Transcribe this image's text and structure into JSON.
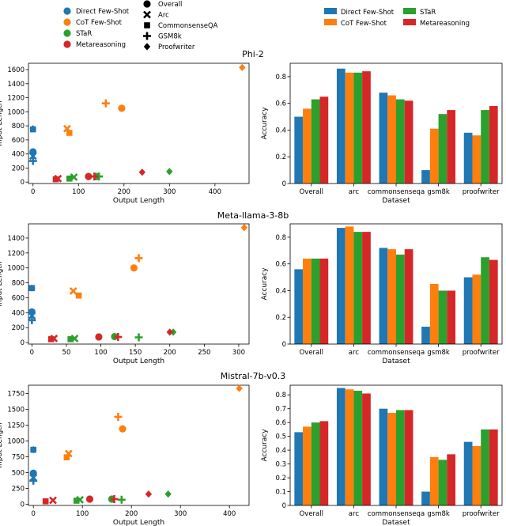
{
  "method_legend": {
    "entries": [
      {
        "label": "Direct Few-Shot",
        "color": "#1f77b4"
      },
      {
        "label": "CoT Few-Shot",
        "color": "#ff7f0e"
      },
      {
        "label": "STaR",
        "color": "#2ca02c"
      },
      {
        "label": "Metareasoning",
        "color": "#d62728"
      }
    ]
  },
  "dataset_legend": {
    "entries": [
      {
        "label": "Overall",
        "marker": "circle"
      },
      {
        "label": "Arc",
        "marker": "x"
      },
      {
        "label": "CommonsenseQA",
        "marker": "square"
      },
      {
        "label": "GSM8k",
        "marker": "plus"
      },
      {
        "label": "Proofwriter",
        "marker": "diamond"
      }
    ]
  },
  "bar_legend": {
    "entries": [
      {
        "label": "Direct Few-Shot",
        "color": "#1f77b4"
      },
      {
        "label": "CoT Few-Shot",
        "color": "#ff7f0e"
      },
      {
        "label": "STaR",
        "color": "#2ca02c"
      },
      {
        "label": "Metareasoning",
        "color": "#d62728"
      }
    ]
  },
  "chart_data": [
    {
      "type": "scatter",
      "title": "Phi-2",
      "xlabel": "Output Length",
      "ylabel": "Input Length",
      "xlim": [
        -10,
        475
      ],
      "ylim": [
        -20,
        1690
      ],
      "xticks": [
        0,
        100,
        200,
        300,
        400
      ],
      "yticks": [
        0,
        200,
        400,
        600,
        800,
        1000,
        1200,
        1400,
        1600
      ],
      "points": [
        {
          "method": "Direct Few-Shot",
          "dataset": "Overall",
          "x": 0,
          "y": 430
        },
        {
          "method": "Direct Few-Shot",
          "dataset": "Arc",
          "x": 0,
          "y": 370
        },
        {
          "method": "Direct Few-Shot",
          "dataset": "CommonsenseQA",
          "x": 0,
          "y": 750
        },
        {
          "method": "Direct Few-Shot",
          "dataset": "GSM8k",
          "x": 0,
          "y": 300
        },
        {
          "method": "Direct Few-Shot",
          "dataset": "Proofwriter",
          "x": 0,
          "y": 760
        },
        {
          "method": "CoT Few-Shot",
          "dataset": "Overall",
          "x": 195,
          "y": 1050
        },
        {
          "method": "CoT Few-Shot",
          "dataset": "Arc",
          "x": 75,
          "y": 760
        },
        {
          "method": "CoT Few-Shot",
          "dataset": "CommonsenseQA",
          "x": 80,
          "y": 700
        },
        {
          "method": "CoT Few-Shot",
          "dataset": "GSM8k",
          "x": 160,
          "y": 1120
        },
        {
          "method": "CoT Few-Shot",
          "dataset": "Proofwriter",
          "x": 460,
          "y": 1630
        },
        {
          "method": "STaR",
          "dataset": "Overall",
          "x": 140,
          "y": 80
        },
        {
          "method": "STaR",
          "dataset": "Arc",
          "x": 90,
          "y": 70
        },
        {
          "method": "STaR",
          "dataset": "CommonsenseQA",
          "x": 80,
          "y": 50
        },
        {
          "method": "STaR",
          "dataset": "GSM8k",
          "x": 145,
          "y": 80
        },
        {
          "method": "STaR",
          "dataset": "Proofwriter",
          "x": 300,
          "y": 150
        },
        {
          "method": "Metareasoning",
          "dataset": "Overall",
          "x": 122,
          "y": 80
        },
        {
          "method": "Metareasoning",
          "dataset": "Arc",
          "x": 55,
          "y": 50
        },
        {
          "method": "Metareasoning",
          "dataset": "CommonsenseQA",
          "x": 50,
          "y": 40
        },
        {
          "method": "Metareasoning",
          "dataset": "GSM8k",
          "x": 135,
          "y": 80
        },
        {
          "method": "Metareasoning",
          "dataset": "Proofwriter",
          "x": 240,
          "y": 140
        }
      ]
    },
    {
      "type": "bar",
      "title": "",
      "xlabel": "Dataset",
      "ylabel": "Accuracy",
      "ylim": [
        0,
        0.9
      ],
      "yticks": [
        0.0,
        0.2,
        0.4,
        0.6,
        0.8
      ],
      "categories": [
        "Overall",
        "arc",
        "commonsenseqa",
        "gsm8k",
        "proofwriter"
      ],
      "series": [
        {
          "name": "Direct Few-Shot",
          "values": [
            0.5,
            0.86,
            0.68,
            0.1,
            0.38
          ]
        },
        {
          "name": "CoT Few-Shot",
          "values": [
            0.56,
            0.83,
            0.66,
            0.41,
            0.36
          ]
        },
        {
          "name": "STaR",
          "values": [
            0.63,
            0.83,
            0.63,
            0.52,
            0.55
          ]
        },
        {
          "name": "Metareasoning",
          "values": [
            0.65,
            0.84,
            0.62,
            0.55,
            0.58
          ]
        }
      ]
    },
    {
      "type": "scatter",
      "title": "Meta-llama-3-8b",
      "xlabel": "Output Length",
      "ylabel": "Input Length",
      "xlim": [
        -5,
        315
      ],
      "ylim": [
        -20,
        1590
      ],
      "xticks": [
        0,
        50,
        100,
        150,
        200,
        250,
        300
      ],
      "yticks": [
        0,
        200,
        400,
        600,
        800,
        1000,
        1200,
        1400
      ],
      "points": [
        {
          "method": "Direct Few-Shot",
          "dataset": "Overall",
          "x": 0,
          "y": 410
        },
        {
          "method": "Direct Few-Shot",
          "dataset": "Arc",
          "x": 0,
          "y": 360
        },
        {
          "method": "Direct Few-Shot",
          "dataset": "CommonsenseQA",
          "x": 0,
          "y": 730
        },
        {
          "method": "Direct Few-Shot",
          "dataset": "GSM8k",
          "x": 0,
          "y": 300
        },
        {
          "method": "Direct Few-Shot",
          "dataset": "Proofwriter",
          "x": 0,
          "y": 730
        },
        {
          "method": "CoT Few-Shot",
          "dataset": "Overall",
          "x": 148,
          "y": 1000
        },
        {
          "method": "CoT Few-Shot",
          "dataset": "Arc",
          "x": 60,
          "y": 690
        },
        {
          "method": "CoT Few-Shot",
          "dataset": "CommonsenseQA",
          "x": 68,
          "y": 630
        },
        {
          "method": "CoT Few-Shot",
          "dataset": "GSM8k",
          "x": 155,
          "y": 1130
        },
        {
          "method": "CoT Few-Shot",
          "dataset": "Proofwriter",
          "x": 308,
          "y": 1540
        },
        {
          "method": "STaR",
          "dataset": "Overall",
          "x": 120,
          "y": 80
        },
        {
          "method": "STaR",
          "dataset": "Arc",
          "x": 62,
          "y": 55
        },
        {
          "method": "STaR",
          "dataset": "CommonsenseQA",
          "x": 56,
          "y": 45
        },
        {
          "method": "STaR",
          "dataset": "GSM8k",
          "x": 155,
          "y": 70
        },
        {
          "method": "STaR",
          "dataset": "Proofwriter",
          "x": 205,
          "y": 140
        },
        {
          "method": "Metareasoning",
          "dataset": "Overall",
          "x": 97,
          "y": 75
        },
        {
          "method": "Metareasoning",
          "dataset": "Arc",
          "x": 32,
          "y": 55
        },
        {
          "method": "Metareasoning",
          "dataset": "CommonsenseQA",
          "x": 28,
          "y": 45
        },
        {
          "method": "Metareasoning",
          "dataset": "GSM8k",
          "x": 125,
          "y": 75
        },
        {
          "method": "Metareasoning",
          "dataset": "Proofwriter",
          "x": 200,
          "y": 140
        }
      ]
    },
    {
      "type": "bar",
      "title": "",
      "xlabel": "Dataset",
      "ylabel": "Accuracy",
      "ylim": [
        0,
        0.9
      ],
      "yticks": [
        0.0,
        0.2,
        0.4,
        0.6,
        0.8
      ],
      "categories": [
        "Overall",
        "arc",
        "commonsenseqa",
        "gsm8k",
        "proofwriter"
      ],
      "series": [
        {
          "name": "Direct Few-Shot",
          "values": [
            0.56,
            0.87,
            0.72,
            0.13,
            0.5
          ]
        },
        {
          "name": "CoT Few-Shot",
          "values": [
            0.64,
            0.88,
            0.71,
            0.45,
            0.52
          ]
        },
        {
          "name": "STaR",
          "values": [
            0.64,
            0.84,
            0.67,
            0.4,
            0.65
          ]
        },
        {
          "name": "Metareasoning",
          "values": [
            0.64,
            0.84,
            0.71,
            0.4,
            0.63
          ]
        }
      ]
    },
    {
      "type": "scatter",
      "title": "Mistral-7b-v0.3",
      "xlabel": "Output Length",
      "ylabel": "Input Length",
      "xlim": [
        -10,
        440
      ],
      "ylim": [
        -20,
        1880
      ],
      "xticks": [
        0,
        100,
        200,
        300,
        400
      ],
      "yticks": [
        0,
        250,
        500,
        750,
        1000,
        1250,
        1500,
        1750
      ],
      "points": [
        {
          "method": "Direct Few-Shot",
          "dataset": "Overall",
          "x": 0,
          "y": 490
        },
        {
          "method": "Direct Few-Shot",
          "dataset": "Arc",
          "x": 0,
          "y": 420
        },
        {
          "method": "Direct Few-Shot",
          "dataset": "CommonsenseQA",
          "x": 0,
          "y": 860
        },
        {
          "method": "Direct Few-Shot",
          "dataset": "GSM8k",
          "x": 0,
          "y": 370
        },
        {
          "method": "Direct Few-Shot",
          "dataset": "Proofwriter",
          "x": 0,
          "y": 860
        },
        {
          "method": "CoT Few-Shot",
          "dataset": "Overall",
          "x": 182,
          "y": 1190
        },
        {
          "method": "CoT Few-Shot",
          "dataset": "Arc",
          "x": 72,
          "y": 800
        },
        {
          "method": "CoT Few-Shot",
          "dataset": "CommonsenseQA",
          "x": 68,
          "y": 740
        },
        {
          "method": "CoT Few-Shot",
          "dataset": "GSM8k",
          "x": 173,
          "y": 1380
        },
        {
          "method": "CoT Few-Shot",
          "dataset": "Proofwriter",
          "x": 420,
          "y": 1830
        },
        {
          "method": "STaR",
          "dataset": "Overall",
          "x": 160,
          "y": 80
        },
        {
          "method": "STaR",
          "dataset": "Arc",
          "x": 95,
          "y": 70
        },
        {
          "method": "STaR",
          "dataset": "CommonsenseQA",
          "x": 88,
          "y": 55
        },
        {
          "method": "STaR",
          "dataset": "GSM8k",
          "x": 180,
          "y": 70
        },
        {
          "method": "STaR",
          "dataset": "Proofwriter",
          "x": 275,
          "y": 160
        },
        {
          "method": "Metareasoning",
          "dataset": "Overall",
          "x": 115,
          "y": 80
        },
        {
          "method": "Metareasoning",
          "dataset": "Arc",
          "x": 40,
          "y": 60
        },
        {
          "method": "Metareasoning",
          "dataset": "CommonsenseQA",
          "x": 25,
          "y": 45
        },
        {
          "method": "Metareasoning",
          "dataset": "GSM8k",
          "x": 165,
          "y": 80
        },
        {
          "method": "Metareasoning",
          "dataset": "Proofwriter",
          "x": 235,
          "y": 160
        }
      ]
    },
    {
      "type": "bar",
      "title": "",
      "xlabel": "Dataset",
      "ylabel": "Accuracy",
      "ylim": [
        0,
        0.87
      ],
      "yticks": [
        0.0,
        0.1,
        0.2,
        0.3,
        0.4,
        0.5,
        0.6,
        0.7,
        0.8
      ],
      "categories": [
        "Overall",
        "arc",
        "commonsenseqa",
        "gsm8k",
        "proofwriter"
      ],
      "series": [
        {
          "name": "Direct Few-Shot",
          "values": [
            0.53,
            0.85,
            0.7,
            0.1,
            0.46
          ]
        },
        {
          "name": "CoT Few-Shot",
          "values": [
            0.57,
            0.84,
            0.67,
            0.35,
            0.43
          ]
        },
        {
          "name": "STaR",
          "values": [
            0.6,
            0.83,
            0.69,
            0.33,
            0.55
          ]
        },
        {
          "name": "Metareasoning",
          "values": [
            0.61,
            0.81,
            0.69,
            0.37,
            0.55
          ]
        }
      ]
    }
  ]
}
